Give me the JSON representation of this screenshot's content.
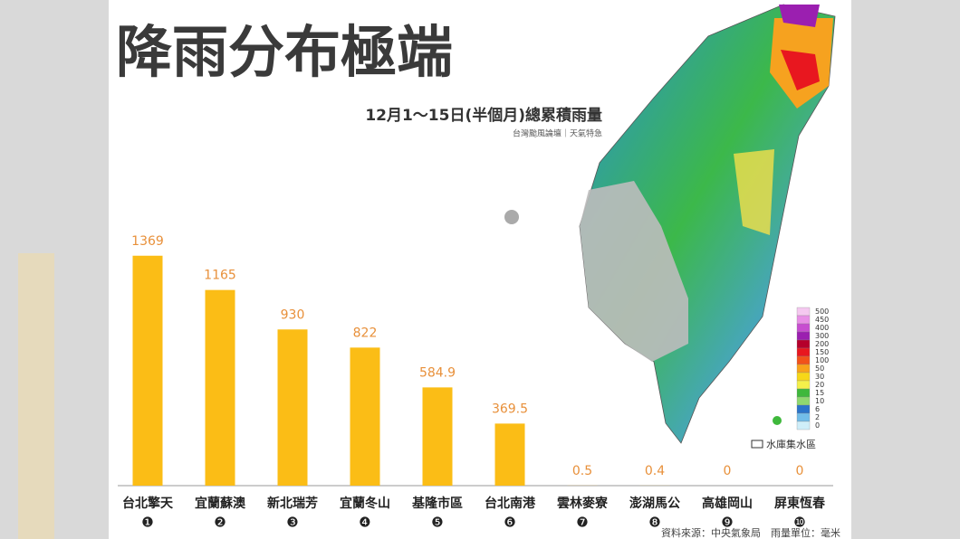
{
  "chart_data": {
    "type": "bar",
    "title": "降雨分布極端",
    "subtitle": "12月1～15日(半個月)總累積雨量",
    "credit": "台灣颱風論壇｜天氣特急",
    "source": "資料來源：中央氣象局　雨量單位：毫米",
    "categories": [
      "台北擎天",
      "宜蘭蘇澳",
      "新北瑞芳",
      "宜蘭冬山",
      "基隆市區",
      "台北南港",
      "雲林麥寮",
      "澎湖馬公",
      "高雄岡山",
      "屏東恆春"
    ],
    "category_numbers": [
      "❶",
      "❷",
      "❸",
      "❹",
      "❺",
      "❻",
      "❼",
      "❽",
      "❾",
      "❿"
    ],
    "values": [
      1369,
      1165,
      930,
      822,
      584.9,
      369.5,
      0.5,
      0.4,
      0,
      0
    ],
    "color": "#fbbd16",
    "label_color": "#e8903a",
    "ylim": [
      0,
      1400
    ],
    "map_legend": {
      "levels": [
        500,
        450,
        400,
        300,
        200,
        150,
        100,
        50,
        30,
        20,
        15,
        10,
        6,
        2,
        0
      ],
      "colors": [
        "#f5c8f0",
        "#e88fe6",
        "#c74dd0",
        "#9b1fb0",
        "#b5002b",
        "#e8171f",
        "#f2521a",
        "#f9a21a",
        "#f7d718",
        "#f4f04a",
        "#3fb83c",
        "#8fd86f",
        "#2b74c9",
        "#72bde9",
        "#cfeef9"
      ],
      "reservoir_label": "水庫集水區"
    }
  }
}
